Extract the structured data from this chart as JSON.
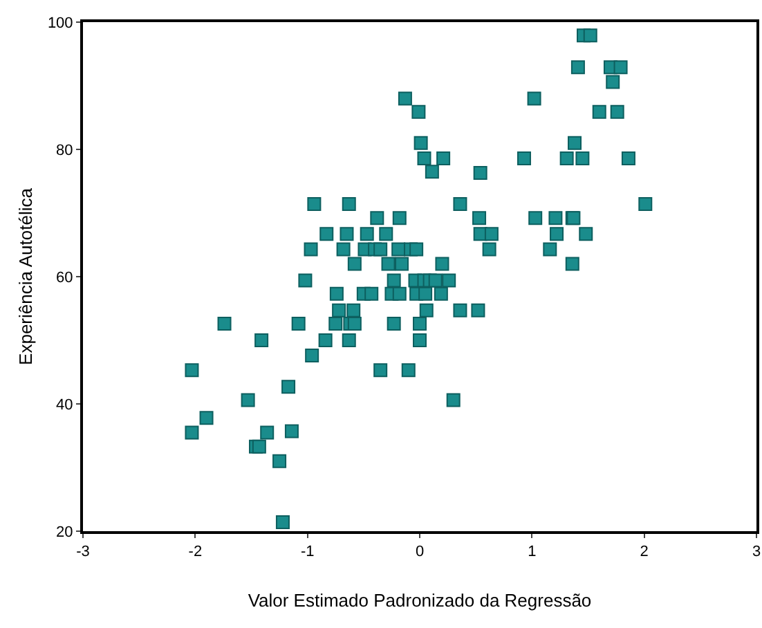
{
  "chart_data": {
    "type": "scatter",
    "xlabel": "Valor Estimado Padronizado da Regressão",
    "ylabel": "Experiência Autotélica",
    "xlim": [
      -3,
      3
    ],
    "xticks": [
      -3,
      -2,
      -1,
      0,
      1,
      2,
      3
    ],
    "ylim": [
      20,
      100
    ],
    "yticks": [
      20,
      40,
      60,
      80,
      100
    ],
    "grid": false,
    "marker": "square",
    "series": [
      {
        "color": "#1a8c8c",
        "x": [
          -2.03,
          -2.03,
          -1.9,
          -1.74,
          -1.53,
          -1.46,
          -1.43,
          -1.41,
          -1.36,
          -1.25,
          -1.22,
          -1.17,
          -1.14,
          -1.08,
          -1.02,
          -0.97,
          -0.96,
          -0.94,
          -0.84,
          -0.83,
          -0.75,
          -0.74,
          -0.72,
          -0.68,
          -0.65,
          -0.63,
          -0.63,
          -0.62,
          -0.59,
          -0.58,
          -0.58,
          -0.5,
          -0.49,
          -0.47,
          -0.43,
          -0.4,
          -0.38,
          -0.35,
          -0.35,
          -0.3,
          -0.28,
          -0.25,
          -0.23,
          -0.23,
          -0.19,
          -0.18,
          -0.18,
          -0.16,
          -0.13,
          -0.1,
          -0.08,
          -0.04,
          -0.03,
          -0.03,
          -0.01,
          0,
          0,
          0.01,
          0.04,
          0.04,
          0.05,
          0.06,
          0.09,
          0.11,
          0.14,
          0.19,
          0.2,
          0.21,
          0.26,
          0.3,
          0.36,
          0.36,
          0.52,
          0.53,
          0.54,
          0.54,
          0.62,
          0.64,
          0.93,
          1.02,
          1.03,
          1.16,
          1.21,
          1.22,
          1.31,
          1.36,
          1.36,
          1.37,
          1.38,
          1.41,
          1.45,
          1.46,
          1.48,
          1.52,
          1.6,
          1.7,
          1.72,
          1.76,
          1.79,
          1.86,
          2.01
        ],
        "values": [
          45.3,
          35.5,
          37.8,
          52.6,
          40.6,
          33.3,
          33.3,
          50,
          35.5,
          31,
          21.4,
          42.7,
          35.7,
          52.6,
          59.4,
          64.3,
          47.6,
          71.4,
          50,
          66.7,
          52.6,
          57.3,
          54.7,
          64.3,
          66.7,
          71.4,
          50,
          52.6,
          54.7,
          52.6,
          62,
          57.3,
          64.3,
          66.7,
          57.3,
          64.3,
          69.2,
          45.3,
          64.3,
          66.7,
          62,
          57.3,
          52.6,
          59.4,
          64.3,
          69.2,
          57.3,
          62,
          88,
          45.3,
          64.3,
          59.4,
          57.3,
          64.3,
          85.9,
          50,
          52.6,
          81,
          78.6,
          59.4,
          57.3,
          54.7,
          59.4,
          76.5,
          59.4,
          57.3,
          62,
          78.6,
          59.4,
          40.6,
          71.4,
          54.7,
          54.7,
          69.2,
          76.3,
          66.7,
          64.3,
          66.7,
          78.6,
          88,
          69.2,
          64.3,
          69.2,
          66.7,
          78.6,
          69.2,
          62,
          69.2,
          81,
          92.9,
          78.6,
          97.9,
          66.7,
          97.9,
          85.9,
          92.9,
          90.6,
          85.9,
          92.9,
          78.6,
          71.4
        ]
      }
    ]
  }
}
